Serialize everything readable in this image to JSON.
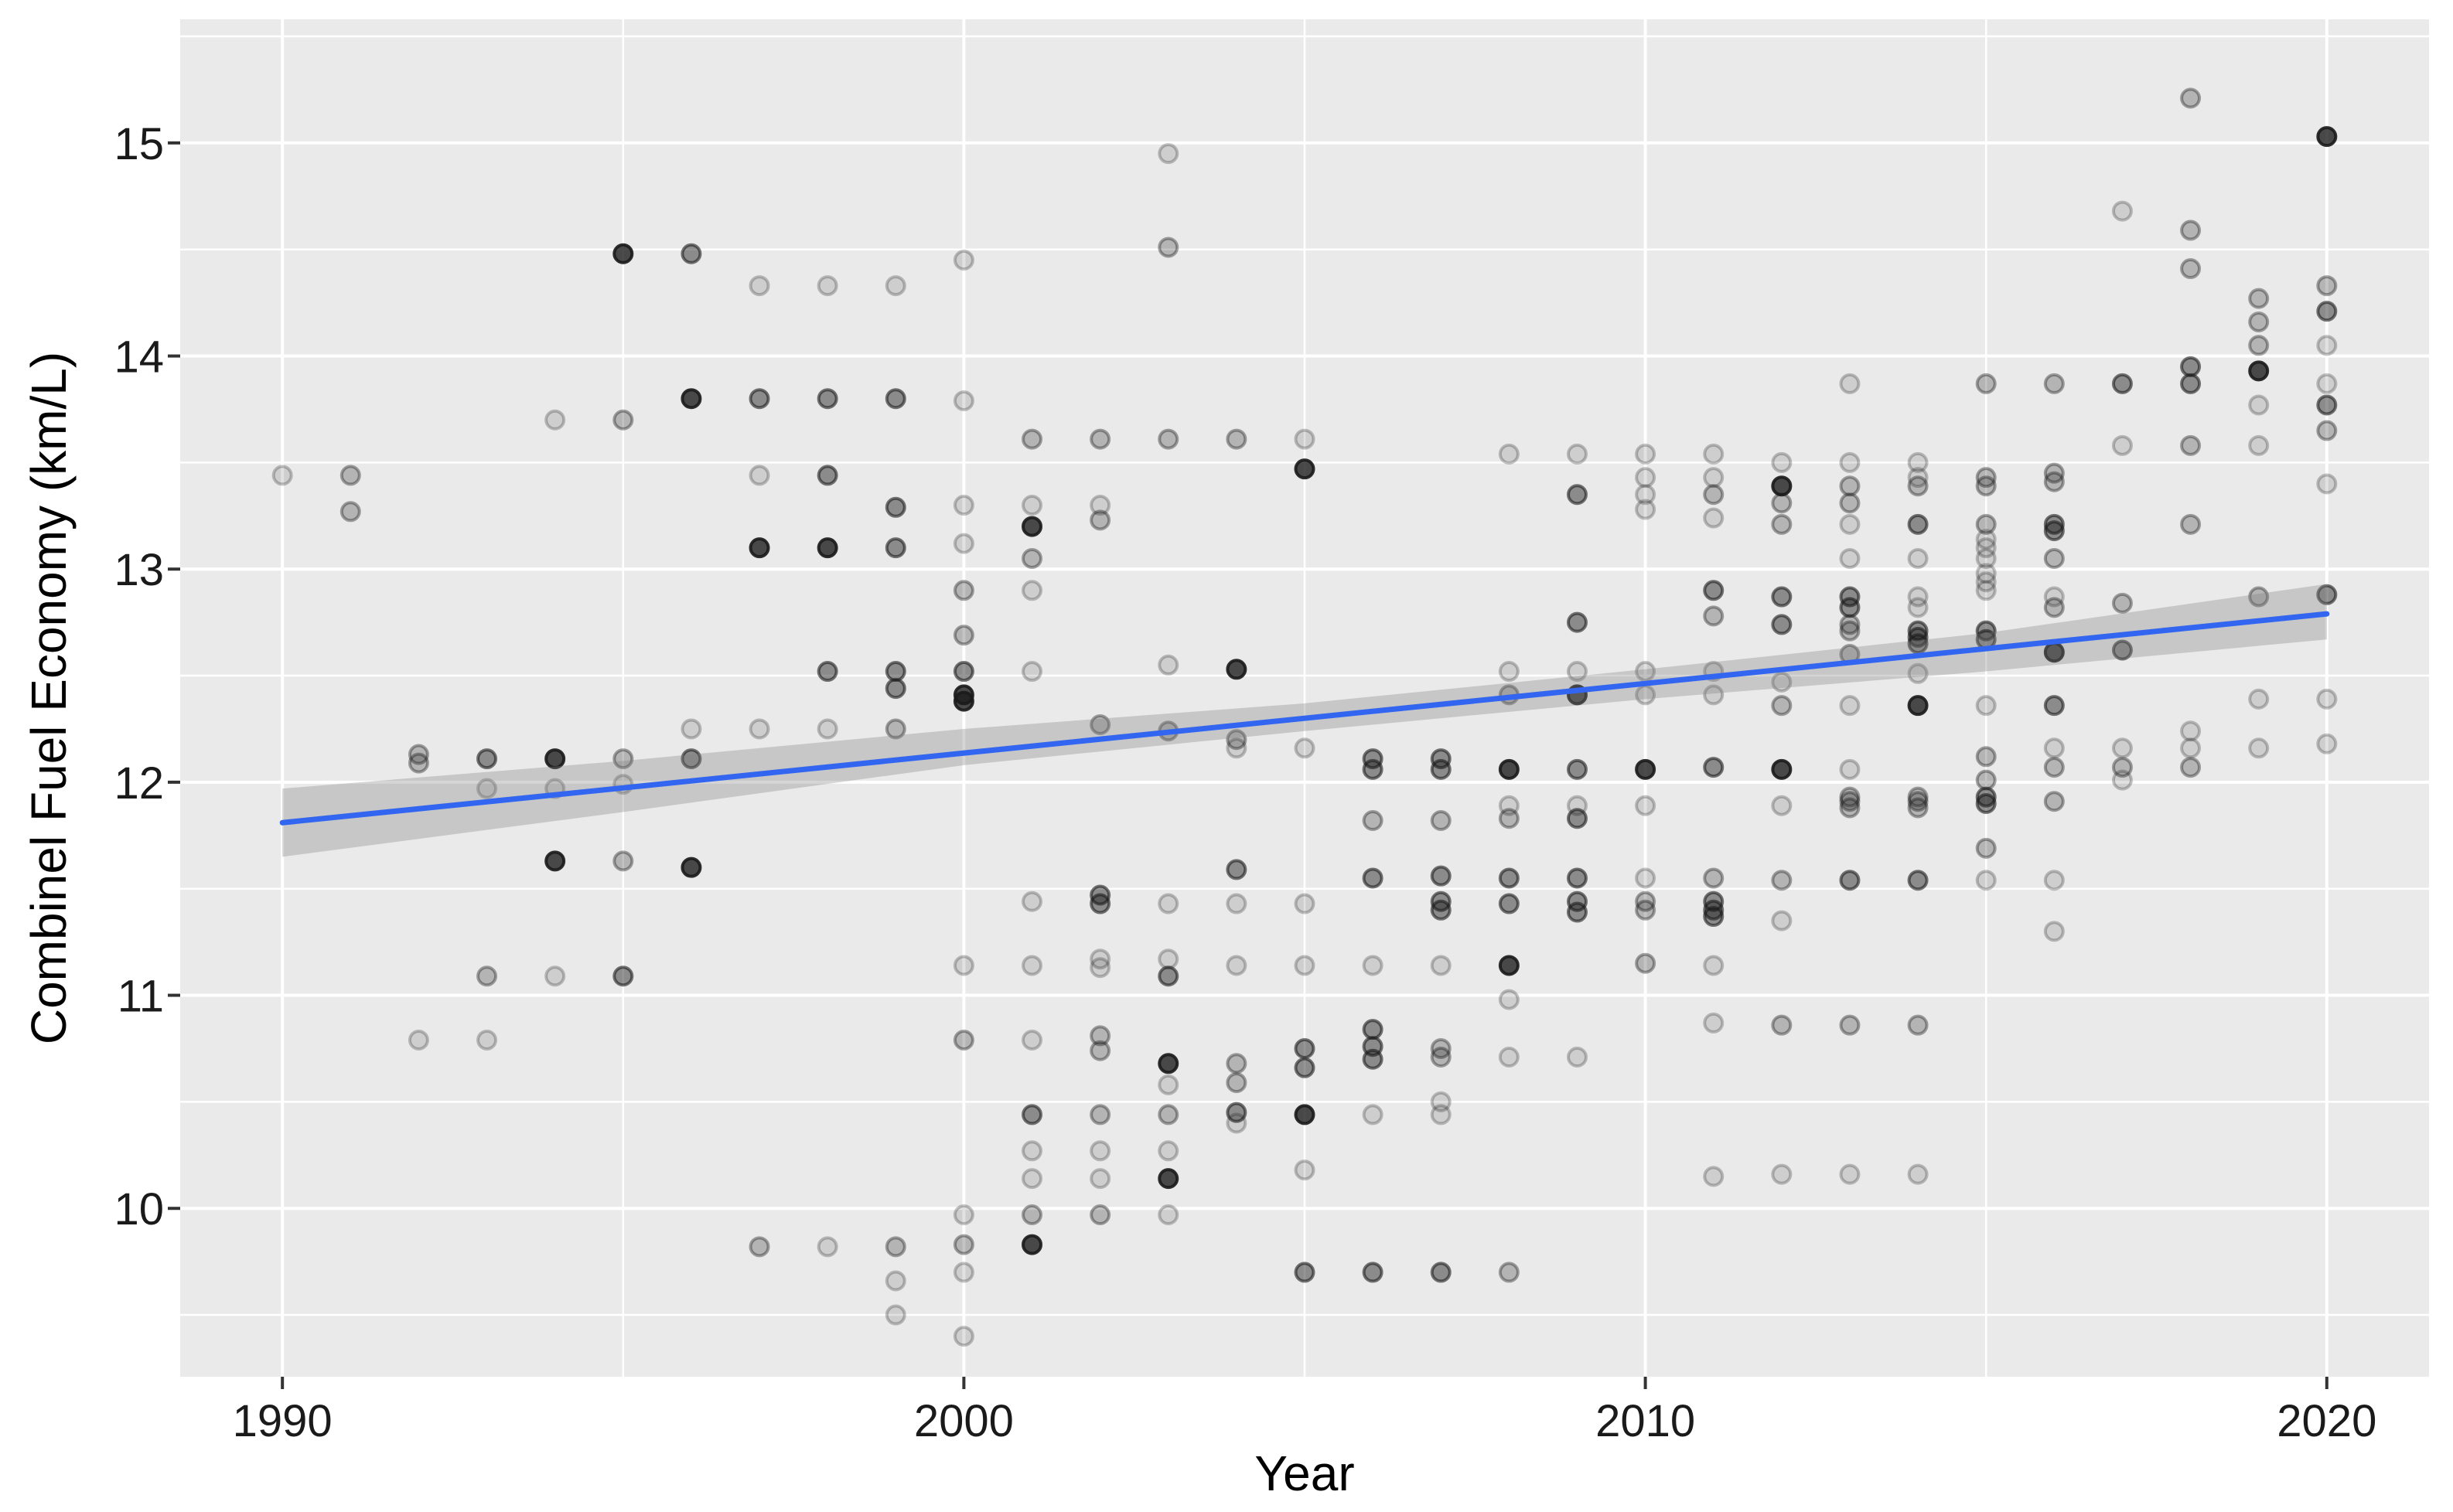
{
  "chart_data": {
    "type": "scatter",
    "title": "",
    "xlabel": "Year",
    "ylabel": "Combinel Fuel Economy (km/L)",
    "legend": "none",
    "grid": true,
    "panel_bg": "#eaeaea",
    "grid_color": "#ffffff",
    "point_color": "#1a1a1a",
    "xlim": [
      1988.5,
      2021.5
    ],
    "ylim": [
      9.21,
      15.58
    ],
    "x_ticks": [
      1990,
      2000,
      2010,
      2020
    ],
    "y_ticks": [
      10,
      11,
      12,
      13,
      14,
      15
    ],
    "x_minor": [
      1995,
      2005,
      2015
    ],
    "y_minor": [
      9.5,
      10.5,
      11.5,
      12.5,
      13.5,
      14.5,
      15.5
    ],
    "shade_alpha": {
      "1": 0.13,
      "2": 0.26,
      "3": 0.46,
      "4": 0.78
    },
    "trend": {
      "type": "linear",
      "x": [
        1990,
        2020
      ],
      "y": [
        11.81,
        12.79
      ],
      "color": "#3366F0",
      "width": 7
    },
    "confidence_band": {
      "x": [
        1990,
        1995,
        2000,
        2005,
        2010,
        2015,
        2020
      ],
      "upper": [
        11.97,
        12.1,
        12.25,
        12.37,
        12.53,
        12.7,
        12.93
      ],
      "lower": [
        11.65,
        11.86,
        12.08,
        12.24,
        12.39,
        12.52,
        12.67
      ],
      "color": "#808080",
      "opacity": 0.33
    },
    "points": [
      [
        1990,
        13.44,
        1
      ],
      [
        1991,
        13.44,
        2
      ],
      [
        1991,
        13.27,
        2
      ],
      [
        1992,
        12.13,
        2
      ],
      [
        1992,
        12.09,
        2
      ],
      [
        1992,
        10.79,
        1
      ],
      [
        1993,
        12.11,
        3
      ],
      [
        1993,
        11.97,
        1
      ],
      [
        1993,
        11.09,
        2
      ],
      [
        1993,
        10.79,
        1
      ],
      [
        1994,
        13.7,
        1
      ],
      [
        1994,
        12.11,
        4
      ],
      [
        1994,
        11.97,
        1
      ],
      [
        1994,
        11.63,
        4
      ],
      [
        1994,
        11.09,
        1
      ],
      [
        1995,
        14.48,
        4
      ],
      [
        1995,
        13.7,
        2
      ],
      [
        1995,
        12.11,
        2
      ],
      [
        1995,
        11.99,
        1
      ],
      [
        1995,
        11.63,
        2
      ],
      [
        1995,
        11.09,
        3
      ],
      [
        1996,
        14.48,
        3
      ],
      [
        1996,
        13.8,
        4
      ],
      [
        1996,
        12.25,
        1
      ],
      [
        1996,
        12.11,
        3
      ],
      [
        1996,
        11.6,
        4
      ],
      [
        1997,
        14.33,
        1
      ],
      [
        1997,
        13.8,
        3
      ],
      [
        1997,
        13.44,
        1
      ],
      [
        1997,
        13.1,
        4
      ],
      [
        1997,
        12.25,
        1
      ],
      [
        1997,
        9.82,
        2
      ],
      [
        1998,
        14.33,
        1
      ],
      [
        1998,
        13.8,
        3
      ],
      [
        1998,
        13.44,
        3
      ],
      [
        1998,
        13.1,
        4
      ],
      [
        1998,
        12.52,
        3
      ],
      [
        1998,
        12.25,
        1
      ],
      [
        1998,
        9.82,
        1
      ],
      [
        1999,
        14.33,
        1
      ],
      [
        1999,
        13.8,
        3
      ],
      [
        1999,
        13.29,
        3
      ],
      [
        1999,
        13.1,
        3
      ],
      [
        1999,
        12.52,
        3
      ],
      [
        1999,
        12.44,
        3
      ],
      [
        1999,
        12.25,
        2
      ],
      [
        1999,
        9.82,
        2
      ],
      [
        1999,
        9.66,
        1
      ],
      [
        1999,
        9.5,
        1
      ],
      [
        2000,
        14.45,
        1
      ],
      [
        2000,
        13.79,
        1
      ],
      [
        2000,
        13.3,
        1
      ],
      [
        2000,
        13.12,
        1
      ],
      [
        2000,
        12.9,
        2
      ],
      [
        2000,
        12.69,
        2
      ],
      [
        2000,
        12.52,
        3
      ],
      [
        2000,
        12.41,
        4
      ],
      [
        2000,
        12.38,
        4
      ],
      [
        2000,
        11.14,
        1
      ],
      [
        2000,
        10.79,
        2
      ],
      [
        2000,
        9.97,
        1
      ],
      [
        2000,
        9.83,
        2
      ],
      [
        2000,
        9.7,
        1
      ],
      [
        2000,
        9.4,
        1
      ],
      [
        2001,
        13.61,
        2
      ],
      [
        2001,
        13.3,
        1
      ],
      [
        2001,
        13.2,
        4
      ],
      [
        2001,
        13.05,
        2
      ],
      [
        2001,
        12.9,
        1
      ],
      [
        2001,
        12.52,
        1
      ],
      [
        2001,
        11.44,
        1
      ],
      [
        2001,
        11.14,
        1
      ],
      [
        2001,
        10.79,
        1
      ],
      [
        2001,
        10.44,
        3
      ],
      [
        2001,
        10.27,
        1
      ],
      [
        2001,
        10.14,
        1
      ],
      [
        2001,
        9.97,
        2
      ],
      [
        2001,
        9.83,
        4
      ],
      [
        2002,
        13.61,
        2
      ],
      [
        2002,
        13.3,
        1
      ],
      [
        2002,
        13.23,
        2
      ],
      [
        2002,
        12.27,
        2
      ],
      [
        2002,
        11.47,
        3
      ],
      [
        2002,
        11.43,
        3
      ],
      [
        2002,
        11.17,
        1
      ],
      [
        2002,
        11.13,
        1
      ],
      [
        2002,
        10.81,
        2
      ],
      [
        2002,
        10.74,
        2
      ],
      [
        2002,
        10.44,
        2
      ],
      [
        2002,
        10.27,
        1
      ],
      [
        2002,
        10.14,
        1
      ],
      [
        2002,
        9.97,
        2
      ],
      [
        2003,
        14.95,
        1
      ],
      [
        2003,
        14.51,
        2
      ],
      [
        2003,
        13.61,
        2
      ],
      [
        2003,
        12.55,
        1
      ],
      [
        2003,
        12.24,
        2
      ],
      [
        2003,
        11.43,
        1
      ],
      [
        2003,
        11.17,
        1
      ],
      [
        2003,
        11.09,
        3
      ],
      [
        2003,
        10.68,
        4
      ],
      [
        2003,
        10.58,
        1
      ],
      [
        2003,
        10.44,
        2
      ],
      [
        2003,
        10.27,
        1
      ],
      [
        2003,
        10.14,
        4
      ],
      [
        2003,
        9.97,
        1
      ],
      [
        2004,
        13.61,
        2
      ],
      [
        2004,
        12.53,
        4
      ],
      [
        2004,
        12.2,
        2
      ],
      [
        2004,
        12.16,
        1
      ],
      [
        2004,
        11.59,
        3
      ],
      [
        2004,
        11.43,
        1
      ],
      [
        2004,
        11.14,
        1
      ],
      [
        2004,
        10.68,
        2
      ],
      [
        2004,
        10.59,
        2
      ],
      [
        2004,
        10.45,
        3
      ],
      [
        2004,
        10.4,
        1
      ],
      [
        2005,
        13.61,
        1
      ],
      [
        2005,
        13.47,
        4
      ],
      [
        2005,
        12.16,
        1
      ],
      [
        2005,
        11.43,
        1
      ],
      [
        2005,
        11.14,
        1
      ],
      [
        2005,
        10.75,
        3
      ],
      [
        2005,
        10.66,
        3
      ],
      [
        2005,
        10.44,
        4
      ],
      [
        2005,
        10.18,
        1
      ],
      [
        2005,
        9.7,
        3
      ],
      [
        2006,
        12.11,
        3
      ],
      [
        2006,
        12.06,
        3
      ],
      [
        2006,
        11.82,
        2
      ],
      [
        2006,
        11.55,
        3
      ],
      [
        2006,
        11.14,
        1
      ],
      [
        2006,
        10.84,
        3
      ],
      [
        2006,
        10.76,
        3
      ],
      [
        2006,
        10.7,
        3
      ],
      [
        2006,
        10.44,
        1
      ],
      [
        2006,
        9.7,
        3
      ],
      [
        2007,
        12.11,
        3
      ],
      [
        2007,
        12.06,
        3
      ],
      [
        2007,
        11.82,
        2
      ],
      [
        2007,
        11.56,
        3
      ],
      [
        2007,
        11.44,
        3
      ],
      [
        2007,
        11.4,
        3
      ],
      [
        2007,
        11.14,
        1
      ],
      [
        2007,
        10.75,
        2
      ],
      [
        2007,
        10.71,
        2
      ],
      [
        2007,
        10.5,
        1
      ],
      [
        2007,
        10.44,
        1
      ],
      [
        2007,
        9.7,
        3
      ],
      [
        2008,
        13.54,
        1
      ],
      [
        2008,
        12.52,
        1
      ],
      [
        2008,
        12.41,
        2
      ],
      [
        2008,
        12.06,
        4
      ],
      [
        2008,
        11.89,
        1
      ],
      [
        2008,
        11.83,
        2
      ],
      [
        2008,
        11.55,
        3
      ],
      [
        2008,
        11.43,
        3
      ],
      [
        2008,
        11.14,
        4
      ],
      [
        2008,
        10.98,
        1
      ],
      [
        2008,
        10.71,
        1
      ],
      [
        2008,
        9.7,
        2
      ],
      [
        2009,
        13.54,
        1
      ],
      [
        2009,
        13.35,
        3
      ],
      [
        2009,
        12.75,
        3
      ],
      [
        2009,
        12.52,
        1
      ],
      [
        2009,
        12.41,
        4
      ],
      [
        2009,
        12.06,
        3
      ],
      [
        2009,
        11.89,
        1
      ],
      [
        2009,
        11.83,
        3
      ],
      [
        2009,
        11.55,
        3
      ],
      [
        2009,
        11.44,
        3
      ],
      [
        2009,
        11.39,
        3
      ],
      [
        2009,
        10.71,
        1
      ],
      [
        2010,
        13.54,
        1
      ],
      [
        2010,
        13.43,
        1
      ],
      [
        2010,
        13.35,
        1
      ],
      [
        2010,
        13.28,
        1
      ],
      [
        2010,
        12.52,
        1
      ],
      [
        2010,
        12.41,
        1
      ],
      [
        2010,
        12.06,
        4
      ],
      [
        2010,
        11.89,
        1
      ],
      [
        2010,
        11.55,
        1
      ],
      [
        2010,
        11.44,
        2
      ],
      [
        2010,
        11.4,
        2
      ],
      [
        2010,
        11.15,
        2
      ],
      [
        2011,
        13.54,
        1
      ],
      [
        2011,
        13.43,
        1
      ],
      [
        2011,
        13.35,
        2
      ],
      [
        2011,
        13.24,
        1
      ],
      [
        2011,
        12.9,
        3
      ],
      [
        2011,
        12.78,
        2
      ],
      [
        2011,
        12.52,
        1
      ],
      [
        2011,
        12.41,
        1
      ],
      [
        2011,
        12.07,
        3
      ],
      [
        2011,
        11.55,
        2
      ],
      [
        2011,
        11.44,
        3
      ],
      [
        2011,
        11.4,
        3
      ],
      [
        2011,
        11.37,
        3
      ],
      [
        2011,
        11.14,
        1
      ],
      [
        2011,
        10.87,
        1
      ],
      [
        2011,
        10.15,
        1
      ],
      [
        2012,
        13.5,
        1
      ],
      [
        2012,
        13.39,
        4
      ],
      [
        2012,
        13.31,
        2
      ],
      [
        2012,
        13.21,
        2
      ],
      [
        2012,
        12.87,
        3
      ],
      [
        2012,
        12.74,
        3
      ],
      [
        2012,
        12.47,
        1
      ],
      [
        2012,
        12.36,
        2
      ],
      [
        2012,
        12.06,
        4
      ],
      [
        2012,
        11.89,
        1
      ],
      [
        2012,
        11.54,
        2
      ],
      [
        2012,
        11.35,
        1
      ],
      [
        2012,
        10.86,
        2
      ],
      [
        2012,
        10.16,
        1
      ],
      [
        2013,
        13.87,
        1
      ],
      [
        2013,
        13.5,
        1
      ],
      [
        2013,
        13.39,
        2
      ],
      [
        2013,
        13.31,
        2
      ],
      [
        2013,
        13.21,
        1
      ],
      [
        2013,
        13.05,
        1
      ],
      [
        2013,
        12.87,
        3
      ],
      [
        2013,
        12.82,
        3
      ],
      [
        2013,
        12.74,
        2
      ],
      [
        2013,
        12.71,
        2
      ],
      [
        2013,
        12.6,
        2
      ],
      [
        2013,
        12.36,
        1
      ],
      [
        2013,
        12.06,
        1
      ],
      [
        2013,
        11.93,
        2
      ],
      [
        2013,
        11.91,
        2
      ],
      [
        2013,
        11.88,
        2
      ],
      [
        2013,
        11.54,
        3
      ],
      [
        2013,
        10.86,
        2
      ],
      [
        2013,
        10.16,
        1
      ],
      [
        2014,
        13.5,
        1
      ],
      [
        2014,
        13.43,
        1
      ],
      [
        2014,
        13.39,
        2
      ],
      [
        2014,
        13.21,
        3
      ],
      [
        2014,
        13.05,
        1
      ],
      [
        2014,
        12.87,
        1
      ],
      [
        2014,
        12.82,
        1
      ],
      [
        2014,
        12.71,
        3
      ],
      [
        2014,
        12.68,
        3
      ],
      [
        2014,
        12.65,
        3
      ],
      [
        2014,
        12.51,
        1
      ],
      [
        2014,
        12.36,
        4
      ],
      [
        2014,
        11.93,
        2
      ],
      [
        2014,
        11.91,
        2
      ],
      [
        2014,
        11.88,
        2
      ],
      [
        2014,
        11.54,
        3
      ],
      [
        2014,
        10.86,
        2
      ],
      [
        2014,
        10.16,
        1
      ],
      [
        2015,
        13.87,
        2
      ],
      [
        2015,
        13.43,
        2
      ],
      [
        2015,
        13.39,
        2
      ],
      [
        2015,
        13.21,
        2
      ],
      [
        2015,
        13.14,
        1
      ],
      [
        2015,
        13.1,
        1
      ],
      [
        2015,
        13.05,
        1
      ],
      [
        2015,
        12.98,
        1
      ],
      [
        2015,
        12.94,
        1
      ],
      [
        2015,
        12.9,
        1
      ],
      [
        2015,
        12.71,
        3
      ],
      [
        2015,
        12.67,
        3
      ],
      [
        2015,
        12.36,
        1
      ],
      [
        2015,
        12.12,
        2
      ],
      [
        2015,
        12.01,
        2
      ],
      [
        2015,
        11.93,
        3
      ],
      [
        2015,
        11.9,
        3
      ],
      [
        2015,
        11.69,
        2
      ],
      [
        2015,
        11.54,
        1
      ],
      [
        2016,
        13.87,
        2
      ],
      [
        2016,
        13.45,
        2
      ],
      [
        2016,
        13.41,
        2
      ],
      [
        2016,
        13.21,
        3
      ],
      [
        2016,
        13.18,
        3
      ],
      [
        2016,
        13.05,
        2
      ],
      [
        2016,
        12.87,
        1
      ],
      [
        2016,
        12.82,
        2
      ],
      [
        2016,
        12.61,
        4
      ],
      [
        2016,
        12.36,
        3
      ],
      [
        2016,
        12.16,
        1
      ],
      [
        2016,
        12.07,
        2
      ],
      [
        2016,
        11.91,
        2
      ],
      [
        2016,
        11.54,
        1
      ],
      [
        2016,
        11.3,
        1
      ],
      [
        2017,
        14.68,
        1
      ],
      [
        2017,
        13.87,
        3
      ],
      [
        2017,
        13.58,
        1
      ],
      [
        2017,
        12.84,
        2
      ],
      [
        2017,
        12.62,
        3
      ],
      [
        2017,
        12.16,
        1
      ],
      [
        2017,
        12.07,
        2
      ],
      [
        2017,
        12.01,
        1
      ],
      [
        2018,
        15.21,
        2
      ],
      [
        2018,
        14.59,
        2
      ],
      [
        2018,
        14.41,
        2
      ],
      [
        2018,
        13.95,
        3
      ],
      [
        2018,
        13.87,
        3
      ],
      [
        2018,
        13.58,
        2
      ],
      [
        2018,
        13.21,
        2
      ],
      [
        2018,
        12.24,
        1
      ],
      [
        2018,
        12.16,
        1
      ],
      [
        2018,
        12.07,
        2
      ],
      [
        2019,
        14.27,
        2
      ],
      [
        2019,
        14.16,
        2
      ],
      [
        2019,
        14.05,
        2
      ],
      [
        2019,
        13.93,
        4
      ],
      [
        2019,
        13.77,
        1
      ],
      [
        2019,
        13.58,
        1
      ],
      [
        2019,
        12.87,
        2
      ],
      [
        2019,
        12.39,
        1
      ],
      [
        2019,
        12.16,
        1
      ],
      [
        2020,
        15.03,
        4
      ],
      [
        2020,
        14.33,
        2
      ],
      [
        2020,
        14.21,
        3
      ],
      [
        2020,
        14.05,
        1
      ],
      [
        2020,
        13.87,
        1
      ],
      [
        2020,
        13.77,
        3
      ],
      [
        2020,
        13.65,
        2
      ],
      [
        2020,
        13.4,
        1
      ],
      [
        2020,
        12.88,
        3
      ],
      [
        2020,
        12.39,
        1
      ],
      [
        2020,
        12.18,
        1
      ]
    ]
  }
}
